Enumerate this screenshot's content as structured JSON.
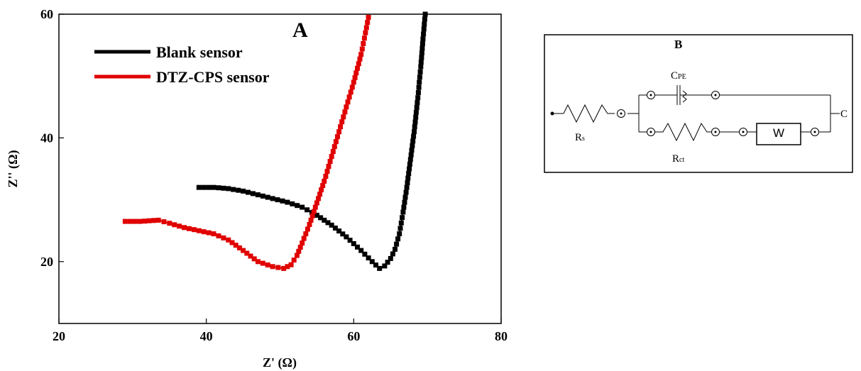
{
  "chart_data": {
    "type": "line",
    "panel_label": "A",
    "xlabel": "Z' (Ω)",
    "ylabel": "Z'' (Ω)",
    "xlim": [
      20,
      80
    ],
    "ylim": [
      10,
      60
    ],
    "xticks": [
      20,
      40,
      60,
      80
    ],
    "yticks": [
      20,
      40,
      60
    ],
    "grid": false,
    "legend_position": "top-left",
    "series": [
      {
        "name": "Blank sensor",
        "color": "#000000",
        "points": [
          [
            39.0,
            32.0
          ],
          [
            41.0,
            32.0
          ],
          [
            43.0,
            31.8
          ],
          [
            45.0,
            31.4
          ],
          [
            47.0,
            30.8
          ],
          [
            49.0,
            30.2
          ],
          [
            51.0,
            29.6
          ],
          [
            53.0,
            28.8
          ],
          [
            55.0,
            27.5
          ],
          [
            57.0,
            25.9
          ],
          [
            59.0,
            24.0
          ],
          [
            61.0,
            21.8
          ],
          [
            62.5,
            20.0
          ],
          [
            63.5,
            18.9
          ],
          [
            64.2,
            19.3
          ],
          [
            65.0,
            20.5
          ],
          [
            65.6,
            22.0
          ],
          [
            66.2,
            24.5
          ],
          [
            66.7,
            28.0
          ],
          [
            67.2,
            32.0
          ],
          [
            67.7,
            36.5
          ],
          [
            68.2,
            41.0
          ],
          [
            68.7,
            46.5
          ],
          [
            69.1,
            51.5
          ],
          [
            69.4,
            56.0
          ],
          [
            69.7,
            60.0
          ]
        ]
      },
      {
        "name": "DTZ-CPS sensor",
        "color": "#e00000",
        "points": [
          [
            29.0,
            26.5
          ],
          [
            31.0,
            26.5
          ],
          [
            33.5,
            26.7
          ],
          [
            35.0,
            26.2
          ],
          [
            37.0,
            25.5
          ],
          [
            39.0,
            25.0
          ],
          [
            41.0,
            24.5
          ],
          [
            43.0,
            23.5
          ],
          [
            45.0,
            21.8
          ],
          [
            47.0,
            20.0
          ],
          [
            49.0,
            19.2
          ],
          [
            50.5,
            18.9
          ],
          [
            51.5,
            19.5
          ],
          [
            52.3,
            21.0
          ],
          [
            53.0,
            23.0
          ],
          [
            54.0,
            26.0
          ],
          [
            55.0,
            29.5
          ],
          [
            56.0,
            33.0
          ],
          [
            57.0,
            37.0
          ],
          [
            58.0,
            41.0
          ],
          [
            59.0,
            45.0
          ],
          [
            60.0,
            49.0
          ],
          [
            61.0,
            53.5
          ],
          [
            61.6,
            57.0
          ],
          [
            62.0,
            59.5
          ]
        ]
      }
    ]
  },
  "circuit": {
    "panel_label": "B",
    "labels": {
      "rs_main": "R",
      "rs_sub": "s",
      "cpe_main": "C",
      "cpe_sub": "PE",
      "rct_main": "R",
      "rct_sub": "ct",
      "w": "W",
      "terminal": "C"
    }
  }
}
